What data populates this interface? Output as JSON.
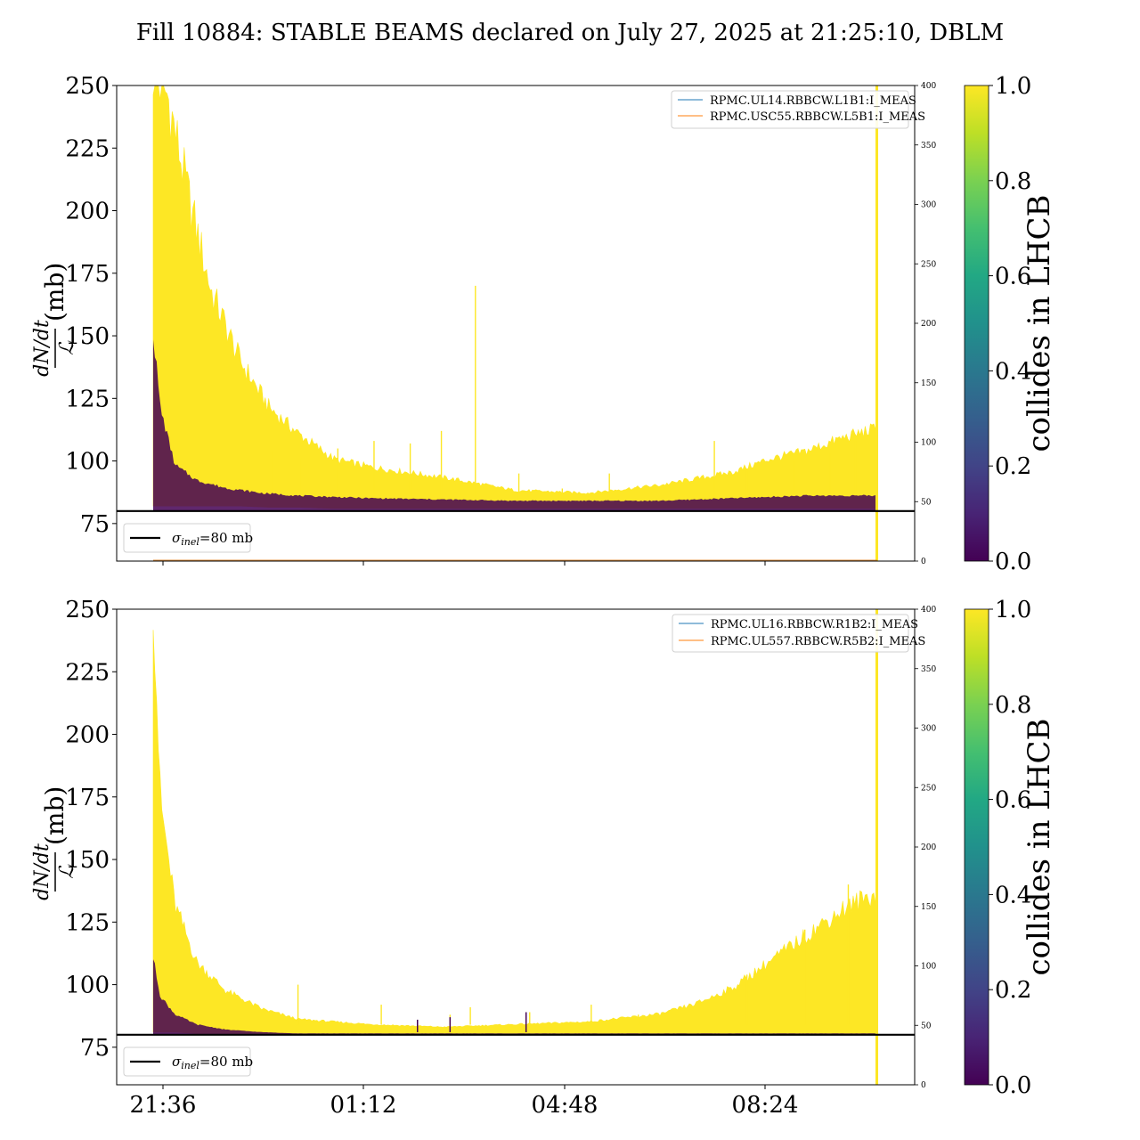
{
  "chart_data": {
    "type": "line",
    "title": "Fill 10884: STABLE BEAMS declared on July 27, 2025 at 21:25:10, DBLM",
    "colorbar": {
      "label": "collides in LHCB",
      "range": [
        0,
        1
      ],
      "ticks": [
        "0.0",
        "0.2",
        "0.4",
        "0.6",
        "0.8",
        "1.0"
      ],
      "colormap": "viridis"
    },
    "shared_x": {
      "tick_labels": [
        "21:36",
        "01:12",
        "04:48",
        "08:24"
      ]
    },
    "panels": [
      {
        "ylabel_numerator": "dN/dt",
        "ylabel_denominator": "ℒ",
        "ylabel_unit": "(mb)",
        "ylim": [
          60,
          250
        ],
        "yticks": [
          75,
          100,
          125,
          150,
          175,
          200,
          225,
          250
        ],
        "y2lim": [
          0,
          400
        ],
        "y2ticks": [
          0,
          50,
          100,
          150,
          200,
          250,
          300,
          350,
          400
        ],
        "sigma_line": {
          "value": 80,
          "label_symbol": "σ",
          "label_sub": "inel",
          "label_rest": "=80 mb"
        },
        "series": [
          {
            "name": "RPMC.UL14.RBBCW.L1B1:I_MEAS",
            "color": "#1f77b4"
          },
          {
            "name": "RPMC.USC55.RBBCW.L5B1:I_MEAS",
            "color": "#ff7f0e"
          }
        ],
        "collides_envelope": {
          "t": [
            0.0,
            0.02,
            0.05,
            0.08,
            0.12,
            0.16,
            0.2,
            0.25,
            0.3,
            0.4,
            0.5,
            0.6,
            0.7,
            0.8,
            0.85,
            0.9,
            0.95,
            1.0
          ],
          "upper": [
            250,
            240,
            200,
            165,
            138,
            120,
            110,
            100,
            97,
            93,
            88,
            87,
            90,
            95,
            100,
            103,
            108,
            112
          ],
          "lower": [
            82,
            82,
            82,
            82,
            82,
            81.5,
            81.5,
            81,
            81,
            81,
            81,
            81,
            81,
            81,
            81,
            81,
            81,
            81
          ]
        },
        "noncollides_envelope": {
          "t": [
            0.0,
            0.01,
            0.03,
            0.06,
            0.1,
            0.15,
            0.2,
            0.3,
            0.5,
            0.7,
            0.8,
            0.9,
            1.0
          ],
          "upper": [
            150,
            120,
            98,
            92,
            89,
            87,
            86,
            85,
            84,
            84,
            85,
            86,
            86
          ],
          "lower": [
            80,
            80,
            80,
            80,
            80,
            80,
            80,
            80,
            80,
            80,
            80,
            80,
            80
          ]
        },
        "spikes": [
          {
            "t": 0.165,
            "y": 104
          },
          {
            "t": 0.205,
            "y": 101
          },
          {
            "t": 0.255,
            "y": 105
          },
          {
            "t": 0.305,
            "y": 108
          },
          {
            "t": 0.355,
            "y": 107
          },
          {
            "t": 0.398,
            "y": 112
          },
          {
            "t": 0.445,
            "y": 170
          },
          {
            "t": 0.505,
            "y": 95
          },
          {
            "t": 0.565,
            "y": 89
          },
          {
            "t": 0.63,
            "y": 95
          },
          {
            "t": 0.662,
            "y": 89
          },
          {
            "t": 0.715,
            "y": 91
          },
          {
            "t": 0.775,
            "y": 108
          },
          {
            "t": 0.82,
            "y": 97
          },
          {
            "t": 0.885,
            "y": 100
          },
          {
            "t": 0.935,
            "y": 103
          },
          {
            "t": 0.97,
            "y": 108
          }
        ]
      },
      {
        "ylabel_numerator": "dN/dt",
        "ylabel_denominator": "ℒ",
        "ylabel_unit": "(mb)",
        "ylim": [
          60,
          250
        ],
        "yticks": [
          75,
          100,
          125,
          150,
          175,
          200,
          225,
          250
        ],
        "y2lim": [
          0,
          400
        ],
        "y2ticks": [
          0,
          50,
          100,
          150,
          200,
          250,
          300,
          350,
          400
        ],
        "sigma_line": {
          "value": 80,
          "label_symbol": "σ",
          "label_sub": "inel",
          "label_rest": "=80 mb"
        },
        "series": [
          {
            "name": "RPMC.UL16.RBBCW.R1B2:I_MEAS",
            "color": "#1f77b4"
          },
          {
            "name": "RPMC.UL557.RBBCW.R5B2:I_MEAS",
            "color": "#ff7f0e"
          }
        ],
        "collides_envelope": {
          "t": [
            0.0,
            0.01,
            0.03,
            0.06,
            0.1,
            0.15,
            0.2,
            0.25,
            0.3,
            0.35,
            0.4,
            0.5,
            0.6,
            0.7,
            0.75,
            0.8,
            0.85,
            0.9,
            0.95,
            1.0
          ],
          "upper": [
            250,
            170,
            130,
            108,
            97,
            90,
            86,
            85,
            84,
            83.5,
            83,
            84,
            85,
            88,
            92,
            98,
            108,
            118,
            128,
            135
          ],
          "lower": [
            81,
            81,
            81,
            80.5,
            80.5,
            80.5,
            80.5,
            80.5,
            80.5,
            80.5,
            80.5,
            80.5,
            80.5,
            80.5,
            80.5,
            80.5,
            80.5,
            80.5,
            80.5,
            80.5
          ]
        },
        "noncollides_envelope": {
          "t": [
            0.0,
            0.01,
            0.03,
            0.06,
            0.1,
            0.15,
            0.2,
            0.3,
            0.5,
            0.7,
            0.9,
            1.0
          ],
          "upper": [
            110,
            95,
            88,
            84,
            82,
            81,
            80.5,
            80.5,
            80.5,
            80.5,
            80.5,
            80.5
          ],
          "lower": [
            80,
            80,
            80,
            80,
            80,
            80,
            80,
            80,
            80,
            80,
            80,
            80
          ]
        },
        "spikes": [
          {
            "t": 0.2,
            "y": 100
          },
          {
            "t": 0.315,
            "y": 92
          },
          {
            "t": 0.41,
            "y": 88
          },
          {
            "t": 0.438,
            "y": 91
          },
          {
            "t": 0.52,
            "y": 89
          },
          {
            "t": 0.605,
            "y": 92
          },
          {
            "t": 0.67,
            "y": 88
          },
          {
            "t": 0.82,
            "y": 104
          },
          {
            "t": 0.9,
            "y": 122
          },
          {
            "t": 0.96,
            "y": 140
          }
        ],
        "purple_spikes": [
          {
            "t": 0.365,
            "y": 86
          },
          {
            "t": 0.41,
            "y": 87
          },
          {
            "t": 0.515,
            "y": 89
          }
        ]
      }
    ]
  }
}
